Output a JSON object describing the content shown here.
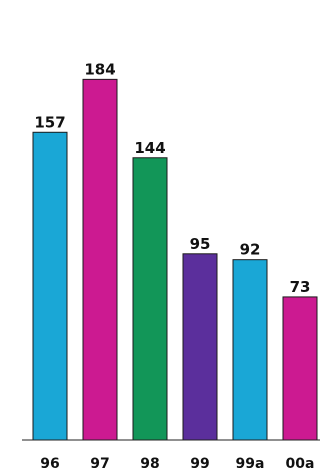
{
  "chart_data": {
    "type": "bar",
    "categories": [
      "96",
      "97",
      "98",
      "99",
      "99a",
      "00a"
    ],
    "values": [
      157,
      184,
      144,
      95,
      92,
      73
    ],
    "bar_colors": [
      "#1aa7d6",
      "#cc1a91",
      "#129658",
      "#5b2f9c",
      "#1aa7d6",
      "#cc1a91"
    ],
    "ylim": [
      0,
      200
    ],
    "grid": false,
    "title": "",
    "xlabel": "",
    "ylabel": ""
  }
}
